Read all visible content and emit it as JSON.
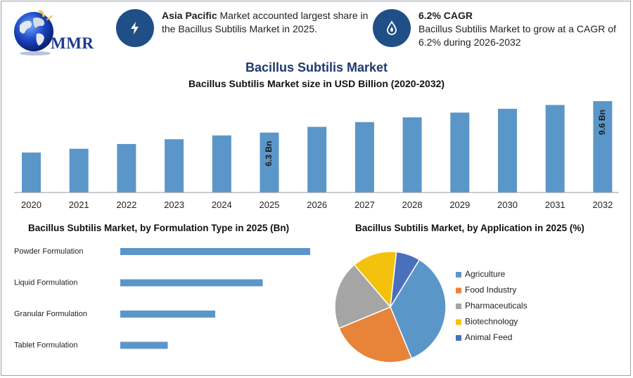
{
  "header": {
    "logo_text": "MMR",
    "stat1": {
      "bold": "Asia Pacific",
      "text": " Market accounted largest share in the Bacillus Subtilis Market in 2025.",
      "icon": "lightning-icon"
    },
    "stat2": {
      "bold": "6.2% CAGR",
      "text": "Bacillus Subtilis Market to grow at a CAGR of 6.2% during 2026-2032",
      "icon": "drop-icon"
    }
  },
  "colors": {
    "bar": "#5b96c9",
    "title": "#1f3a6e",
    "icon_circle": "#1f4f86"
  },
  "chart_data": [
    {
      "type": "bar",
      "title": "Bacillus Subtilis Market",
      "subtitle": "Bacillus Subtilis Market size in USD Billion (2020-2032)",
      "categories": [
        "2020",
        "2021",
        "2022",
        "2023",
        "2024",
        "2025",
        "2026",
        "2027",
        "2028",
        "2029",
        "2030",
        "2031",
        "2032"
      ],
      "values": [
        4.2,
        4.6,
        5.1,
        5.6,
        6.0,
        6.3,
        6.9,
        7.4,
        7.9,
        8.4,
        8.8,
        9.2,
        9.6
      ],
      "data_labels": {
        "5": "6.3 Bn",
        "12": "9.6 Bn"
      },
      "ylim": [
        0,
        10
      ],
      "grid": false,
      "color": "#5b96c9"
    },
    {
      "type": "bar",
      "orientation": "horizontal",
      "title": "Bacillus Subtilis Market, by Formulation Type in 2025 (Bn)",
      "categories": [
        "Powder Formulation",
        "Liquid Formulation",
        "Granular Formulation",
        "Tablet Formulation"
      ],
      "values": [
        2.4,
        1.8,
        1.2,
        0.6
      ],
      "xlim": [
        0,
        2.4
      ],
      "color": "#5b96c9"
    },
    {
      "type": "pie",
      "title": "Bacillus Subtilis Market, by Application in 2025 (%)",
      "legend": "right",
      "slices": [
        {
          "label": "Agriculture",
          "value": 35,
          "color": "#5b96c9"
        },
        {
          "label": "Food Industry",
          "value": 25,
          "color": "#e8833a"
        },
        {
          "label": "Pharmaceuticals",
          "value": 20,
          "color": "#a5a5a5"
        },
        {
          "label": "Biotechnology",
          "value": 13,
          "color": "#f4c20d"
        },
        {
          "label": "Animal Feed",
          "value": 7,
          "color": "#4a6fbd"
        }
      ]
    }
  ]
}
